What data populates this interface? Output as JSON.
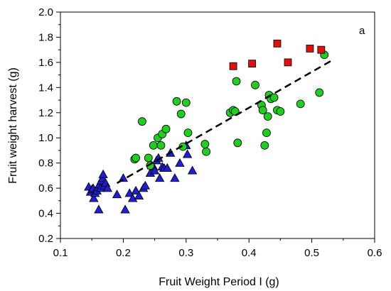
{
  "chart_data": {
    "type": "scatter",
    "panel_label": "a",
    "xlabel": "Fruit Weight Period I (g)",
    "ylabel": "Fruit weight harvest (g)",
    "xlim": [
      0.1,
      0.6
    ],
    "ylim": [
      0.2,
      2.0
    ],
    "xticks": [
      "0.1",
      "0.2",
      "0.3",
      "0.4",
      "0.5",
      "0.6"
    ],
    "yticks": [
      "0.2",
      "0.4",
      "0.6",
      "0.8",
      "1.0",
      "1.2",
      "1.4",
      "1.6",
      "1.8",
      "2.0"
    ],
    "grid": false,
    "legend": false,
    "series": [
      {
        "marker": "triangle",
        "color": "#1f1fd0",
        "points": [
          [
            0.145,
            0.61
          ],
          [
            0.148,
            0.57
          ],
          [
            0.15,
            0.59
          ],
          [
            0.152,
            0.6
          ],
          [
            0.153,
            0.52
          ],
          [
            0.155,
            0.56
          ],
          [
            0.158,
            0.58
          ],
          [
            0.16,
            0.61
          ],
          [
            0.161,
            0.43
          ],
          [
            0.162,
            0.63
          ],
          [
            0.164,
            0.6
          ],
          [
            0.165,
            0.66
          ],
          [
            0.167,
            0.68
          ],
          [
            0.168,
            0.71
          ],
          [
            0.17,
            0.62
          ],
          [
            0.172,
            0.64
          ],
          [
            0.175,
            0.6
          ],
          [
            0.19,
            0.55
          ],
          [
            0.2,
            0.68
          ],
          [
            0.203,
            0.43
          ],
          [
            0.21,
            0.56
          ],
          [
            0.215,
            0.52
          ],
          [
            0.22,
            0.58
          ],
          [
            0.225,
            0.54
          ],
          [
            0.232,
            0.6
          ],
          [
            0.235,
            0.62
          ],
          [
            0.243,
            0.72
          ],
          [
            0.245,
            0.78
          ],
          [
            0.248,
            0.77
          ],
          [
            0.25,
            0.74
          ],
          [
            0.253,
            0.82
          ],
          [
            0.256,
            0.84
          ],
          [
            0.258,
            0.68
          ],
          [
            0.262,
            0.77
          ],
          [
            0.265,
            0.76
          ],
          [
            0.27,
            0.76
          ],
          [
            0.275,
            0.88
          ],
          [
            0.282,
            0.68
          ],
          [
            0.29,
            0.8
          ],
          [
            0.3,
            0.94
          ],
          [
            0.302,
            0.87
          ],
          [
            0.31,
            0.74
          ]
        ]
      },
      {
        "marker": "circle",
        "color": "#22cc22",
        "points": [
          [
            0.218,
            0.83
          ],
          [
            0.22,
            0.84
          ],
          [
            0.23,
            1.13
          ],
          [
            0.24,
            0.84
          ],
          [
            0.243,
            0.78
          ],
          [
            0.248,
            0.94
          ],
          [
            0.255,
            1.0
          ],
          [
            0.26,
            0.94
          ],
          [
            0.262,
            1.03
          ],
          [
            0.268,
            1.07
          ],
          [
            0.285,
            1.29
          ],
          [
            0.292,
            1.19
          ],
          [
            0.295,
            0.93
          ],
          [
            0.3,
            1.28
          ],
          [
            0.303,
            1.04
          ],
          [
            0.33,
            0.95
          ],
          [
            0.332,
            0.89
          ],
          [
            0.37,
            1.2
          ],
          [
            0.375,
            1.22
          ],
          [
            0.378,
            1.21
          ],
          [
            0.38,
            1.45
          ],
          [
            0.382,
            0.96
          ],
          [
            0.41,
            1.42
          ],
          [
            0.42,
            1.26
          ],
          [
            0.422,
            1.22
          ],
          [
            0.425,
            0.94
          ],
          [
            0.428,
            1.04
          ],
          [
            0.43,
            1.17
          ],
          [
            0.432,
            1.34
          ],
          [
            0.435,
            1.31
          ],
          [
            0.44,
            1.32
          ],
          [
            0.445,
            1.22
          ],
          [
            0.45,
            1.21
          ],
          [
            0.482,
            1.27
          ],
          [
            0.512,
            1.36
          ],
          [
            0.52,
            1.66
          ]
        ]
      },
      {
        "marker": "square",
        "color": "#dd1111",
        "points": [
          [
            0.375,
            1.57
          ],
          [
            0.405,
            1.59
          ],
          [
            0.445,
            1.75
          ],
          [
            0.462,
            1.6
          ],
          [
            0.497,
            1.71
          ],
          [
            0.515,
            1.7
          ]
        ]
      }
    ],
    "fit_line": {
      "style": "dashed",
      "color": "#000000",
      "x": [
        0.19,
        0.53
      ],
      "y": [
        0.64,
        1.61
      ]
    }
  }
}
